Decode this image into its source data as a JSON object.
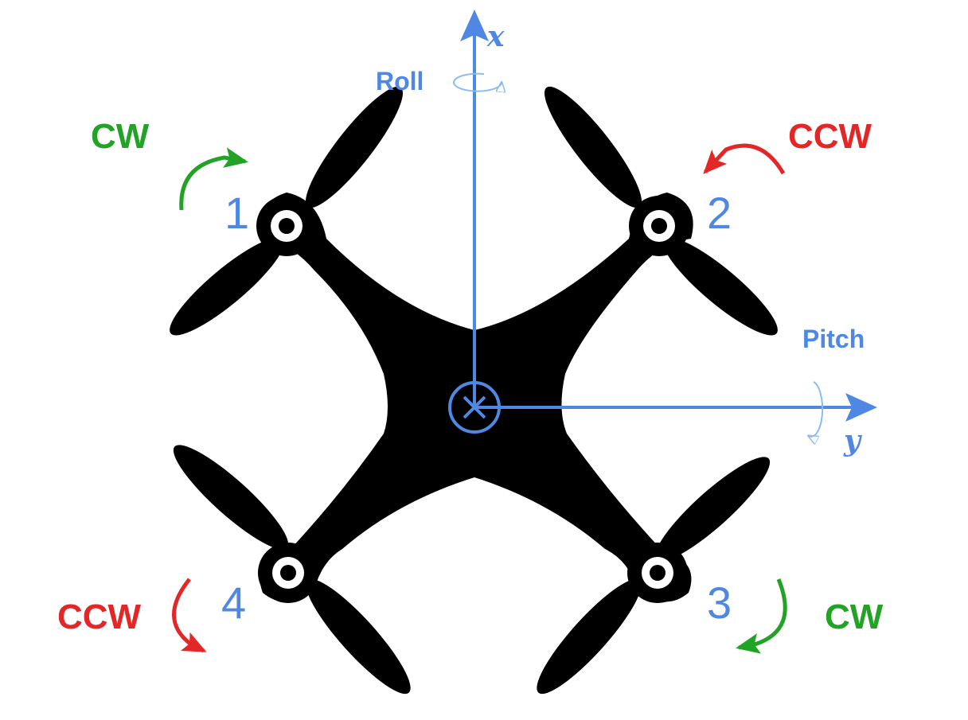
{
  "colors": {
    "cw": "#22a325",
    "ccw": "#e32626",
    "axis": "#4f88e3",
    "axis_light": "#8cbcf2",
    "body": "#000000"
  },
  "motors": [
    {
      "number": "1",
      "direction": "CW"
    },
    {
      "number": "2",
      "direction": "CCW"
    },
    {
      "number": "3",
      "direction": "CW"
    },
    {
      "number": "4",
      "direction": "CCW"
    }
  ],
  "axes": {
    "x": {
      "variable": "x",
      "rotation": "Roll"
    },
    "y": {
      "variable": "y",
      "rotation": "Pitch"
    }
  },
  "icons": [
    "rotation-arrow-icon",
    "roll-rotation-icon",
    "pitch-rotation-icon",
    "center-cross-icon"
  ]
}
